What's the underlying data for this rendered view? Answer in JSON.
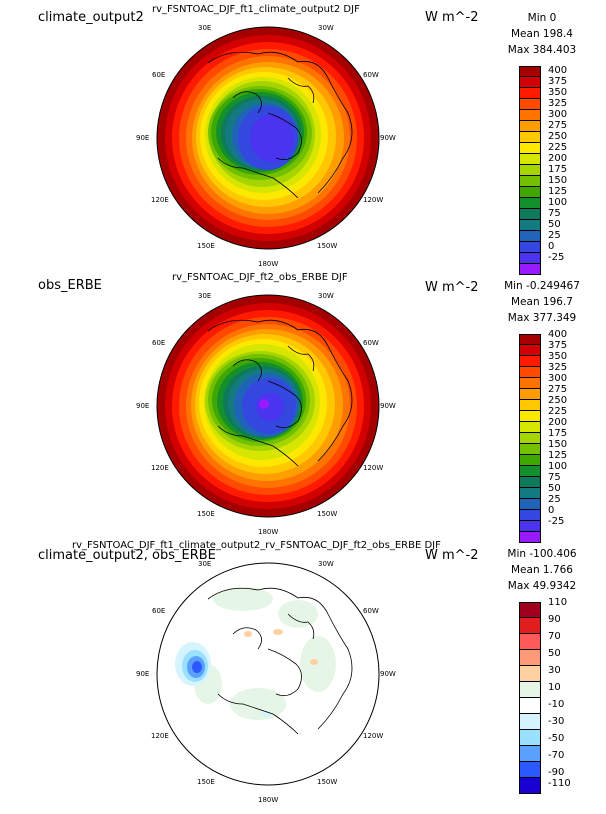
{
  "panels": [
    {
      "title": "rv_FSNTOAC_DJF_ft1_climate_output2  DJF",
      "left_label": "climate_output2",
      "units": "W m^-2",
      "stats": {
        "min": "Min 0",
        "mean": "Mean 198.4",
        "max": "Max 384.403"
      },
      "colorbar_labels": [
        "400",
        "375",
        "350",
        "325",
        "300",
        "275",
        "250",
        "225",
        "200",
        "175",
        "150",
        "125",
        "100",
        "75",
        "50",
        "25",
        "0",
        "-25"
      ],
      "colorbar_colors": [
        "#a50000",
        "#d20000",
        "#ff1a00",
        "#ff4a00",
        "#ff7400",
        "#ff9e00",
        "#ffc800",
        "#ffe800",
        "#d6e600",
        "#a6d400",
        "#72c000",
        "#3fa800",
        "#138f2c",
        "#0e7a5a",
        "#147a82",
        "#1f64b8",
        "#3448e0",
        "#4a34f0",
        "#9a1aff"
      ],
      "longitude_labels": [
        "30E",
        "30W",
        "60E",
        "60W",
        "90E",
        "90W",
        "120E",
        "120W",
        "150E",
        "150W",
        "180W"
      ]
    },
    {
      "title": "rv_FSNTOAC_DJF_ft2_obs_ERBE  DJF",
      "left_label": "obs_ERBE",
      "units": "W m^-2",
      "stats": {
        "min": "Min -0.249467",
        "mean": "Mean 196.7",
        "max": "Max 377.349"
      },
      "colorbar_labels": [
        "400",
        "375",
        "350",
        "325",
        "300",
        "275",
        "250",
        "225",
        "200",
        "175",
        "150",
        "125",
        "100",
        "75",
        "50",
        "25",
        "0",
        "-25"
      ],
      "colorbar_colors": [
        "#a50000",
        "#d20000",
        "#ff1a00",
        "#ff4a00",
        "#ff7400",
        "#ff9e00",
        "#ffc800",
        "#ffe800",
        "#d6e600",
        "#a6d400",
        "#72c000",
        "#3fa800",
        "#138f2c",
        "#0e7a5a",
        "#147a82",
        "#1f64b8",
        "#3448e0",
        "#4a34f0",
        "#9a1aff"
      ],
      "longitude_labels": [
        "30E",
        "30W",
        "60E",
        "60W",
        "90E",
        "90W",
        "120E",
        "120W",
        "150E",
        "150W",
        "180W"
      ]
    },
    {
      "title": "rv_FSNTOAC_DJF_ft1_climate_output2_rv_FSNTOAC_DJF_ft2_obs_ERBE  DJF",
      "left_label": "climate_output2, obs_ERBE",
      "units": "W m^-2",
      "stats": {
        "min": "Min -100.406",
        "mean": "Mean 1.766",
        "max": "Max 49.9342"
      },
      "colorbar_labels": [
        "110",
        "90",
        "70",
        "50",
        "30",
        "10",
        "-10",
        "-30",
        "-50",
        "-70",
        "-90",
        "-110"
      ],
      "colorbar_colors": [
        "#a0001e",
        "#e01e1e",
        "#ff5a5a",
        "#ff9a78",
        "#ffd0a0",
        "#e6f6e6",
        "#ffffff",
        "#d6f4ff",
        "#9ae0ff",
        "#5aa0ff",
        "#2a5aff",
        "#1a00d0"
      ],
      "longitude_labels": [
        "30E",
        "30W",
        "60E",
        "60W",
        "90E",
        "90W",
        "120E",
        "120W",
        "150E",
        "150W",
        "180W"
      ]
    }
  ]
}
